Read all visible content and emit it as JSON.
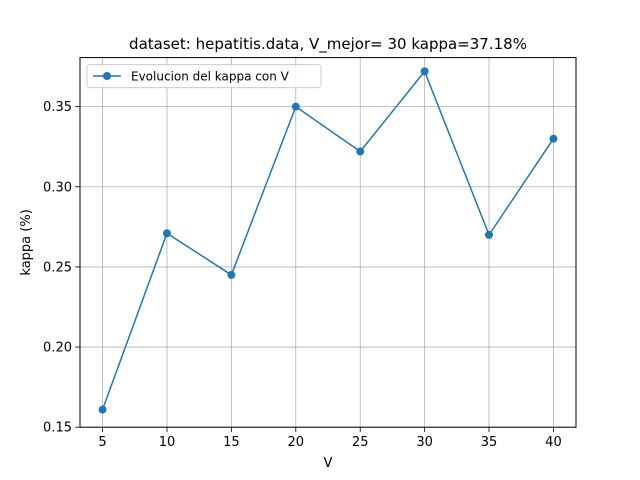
{
  "chart_data": {
    "type": "line",
    "title": "dataset: hepatitis.data, V_mejor= 30 kappa=37.18%",
    "xlabel": "V",
    "ylabel": "kappa (%)",
    "x": [
      5,
      10,
      15,
      20,
      25,
      30,
      35,
      40
    ],
    "series": [
      {
        "name": "Evolucion del kappa con V",
        "values": [
          0.161,
          0.271,
          0.245,
          0.35,
          0.322,
          0.372,
          0.27,
          0.33
        ],
        "color": "#1f77b4"
      }
    ],
    "xlim": [
      3.25,
      41.75
    ],
    "ylim": [
      0.15,
      0.3806
    ],
    "xticks": [
      "5",
      "10",
      "15",
      "20",
      "25",
      "30",
      "35",
      "40"
    ],
    "yticks": [
      "0.15",
      "0.20",
      "0.25",
      "0.30",
      "0.35"
    ],
    "grid": true,
    "legend_position": "upper-left"
  }
}
